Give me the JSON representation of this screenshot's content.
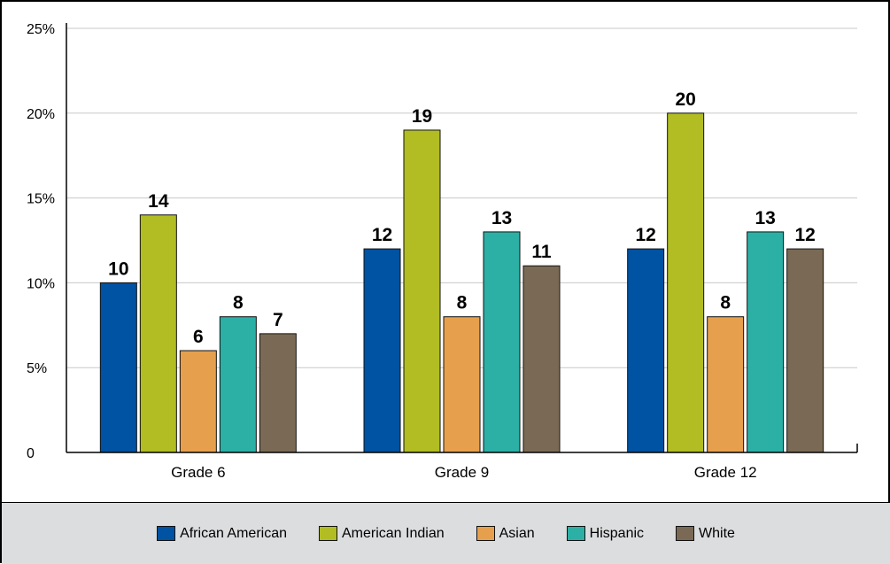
{
  "chart_data": {
    "type": "bar",
    "categories": [
      "Grade 6",
      "Grade 9",
      "Grade 12"
    ],
    "series": [
      {
        "name": "African American",
        "values": [
          10,
          12,
          12
        ],
        "color": "#0052a2"
      },
      {
        "name": "American Indian",
        "values": [
          14,
          19,
          20
        ],
        "color": "#b1bd22"
      },
      {
        "name": "Asian",
        "values": [
          6,
          8,
          8
        ],
        "color": "#e6a04d"
      },
      {
        "name": "Hispanic",
        "values": [
          8,
          13,
          13
        ],
        "color": "#2cb0a6"
      },
      {
        "name": "White",
        "values": [
          7,
          11,
          12
        ],
        "color": "#7a6a55"
      }
    ],
    "ylim": [
      0,
      25
    ],
    "yticks": [
      {
        "value": 0,
        "label": "0"
      },
      {
        "value": 5,
        "label": "5%"
      },
      {
        "value": 10,
        "label": "10%"
      },
      {
        "value": 15,
        "label": "15%"
      },
      {
        "value": 20,
        "label": "20%"
      },
      {
        "value": 25,
        "label": "25%"
      }
    ],
    "grid": true,
    "legend_position": "bottom"
  }
}
